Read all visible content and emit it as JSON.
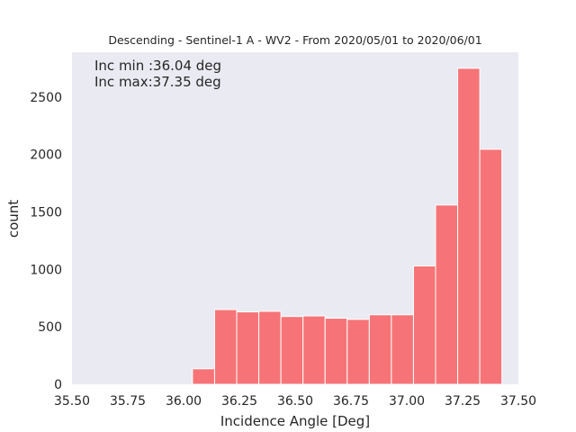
{
  "chart_data": {
    "type": "bar",
    "title": "Descending - Sentinel-1 A - WV2 - From 2020/05/01 to 2020/06/01",
    "xlabel": "Incidence Angle [Deg]",
    "ylabel": "count",
    "xlim": [
      35.5,
      37.5
    ],
    "ylim": [
      0,
      2890
    ],
    "xticks": [
      "35.50",
      "35.75",
      "36.00",
      "36.25",
      "36.50",
      "36.75",
      "37.00",
      "37.25",
      "37.50"
    ],
    "yticks": [
      "0",
      "500",
      "1000",
      "1500",
      "2000",
      "2500"
    ],
    "grid": false,
    "bin_edges": [
      36.04,
      36.139,
      36.238,
      36.337,
      36.436,
      36.535,
      36.634,
      36.733,
      36.832,
      36.931,
      37.03,
      37.129,
      37.228,
      37.327,
      37.426
    ],
    "values": [
      135,
      650,
      630,
      635,
      590,
      595,
      575,
      565,
      605,
      605,
      1030,
      1560,
      2750,
      2045
    ],
    "bar_color": "#f67477",
    "annotations": [
      "Inc min :36.04 deg",
      "Inc max:37.35 deg"
    ]
  }
}
